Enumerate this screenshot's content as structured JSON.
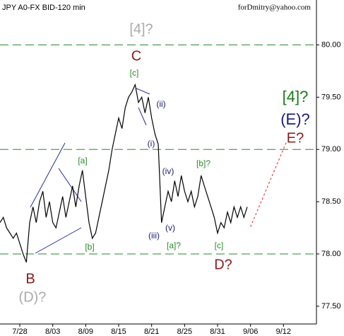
{
  "header": {
    "title": "JPY A0-FX BID-120 min",
    "author": "forDmitry@yahoo.com"
  },
  "chart_data": {
    "type": "line",
    "x": [
      0,
      1,
      2,
      3,
      4,
      5,
      6,
      7,
      8,
      9,
      10,
      11,
      12,
      13,
      14,
      15,
      16,
      17,
      18,
      19,
      20,
      21,
      22,
      23,
      24,
      25,
      26,
      27,
      28,
      29,
      30,
      31,
      32,
      33,
      34,
      35,
      36,
      37,
      38,
      39,
      40,
      41,
      42,
      43,
      44,
      45,
      46,
      47,
      48,
      49,
      50,
      51,
      52,
      53,
      54,
      55,
      56,
      57,
      58,
      59,
      60,
      61,
      62,
      63,
      64,
      65,
      66,
      67,
      68,
      69,
      70,
      71,
      72,
      73,
      74,
      75
    ],
    "values": [
      78.3,
      78.35,
      78.25,
      78.2,
      78.15,
      78.2,
      78.1,
      78.0,
      77.92,
      78.3,
      78.45,
      78.3,
      78.5,
      78.6,
      78.35,
      78.5,
      78.3,
      78.25,
      78.4,
      78.55,
      78.35,
      78.5,
      78.65,
      78.45,
      78.65,
      78.8,
      78.55,
      78.3,
      78.15,
      78.2,
      78.35,
      78.5,
      78.65,
      78.8,
      79.0,
      79.15,
      79.3,
      79.2,
      79.4,
      79.5,
      79.55,
      79.62,
      79.45,
      79.5,
      79.35,
      79.5,
      79.3,
      79.15,
      79.05,
      78.3,
      78.45,
      78.6,
      78.5,
      78.7,
      78.55,
      78.75,
      78.6,
      78.5,
      78.6,
      78.45,
      78.55,
      78.75,
      78.65,
      78.55,
      78.45,
      78.35,
      78.2,
      78.3,
      78.25,
      78.4,
      78.3,
      78.45,
      78.35,
      78.45,
      78.35,
      78.45
    ],
    "color": "#000000",
    "projection": {
      "x": [
        76,
        87
      ],
      "values": [
        78.26,
        79.08
      ],
      "color": "#e02020"
    },
    "xlim": [
      0,
      96
    ],
    "xticks": [
      {
        "value": 6,
        "label": "7/28"
      },
      {
        "value": 16,
        "label": "8/03"
      },
      {
        "value": 26,
        "label": "8/09"
      },
      {
        "value": 36,
        "label": "8/15"
      },
      {
        "value": 46,
        "label": "8/21"
      },
      {
        "value": 56,
        "label": "8/25"
      },
      {
        "value": 66,
        "label": "8/31"
      },
      {
        "value": 76,
        "label": "9/06"
      },
      {
        "value": 86,
        "label": "9/12"
      }
    ],
    "ylim": [
      77.33,
      80.43
    ],
    "yticks": [
      {
        "value": 77.5,
        "label": "77.50"
      },
      {
        "value": 78,
        "label": "78.00"
      },
      {
        "value": 78.5,
        "label": "78.50"
      },
      {
        "value": 79,
        "label": "79.00"
      },
      {
        "value": 79.5,
        "label": "79.50"
      },
      {
        "value": 80,
        "label": "80.00"
      }
    ],
    "hlines": [
      78,
      79,
      80
    ],
    "hline_color": "#2a8a2a",
    "annotations": [
      "[4]?",
      "C",
      "[c]",
      "(ii)",
      "(i)",
      "[a]",
      "(iv)",
      "[b]?",
      "(iii)",
      "(v)",
      "[a]?",
      "[b]",
      "[c]",
      "D?",
      "B",
      "(D)?",
      "[4]?",
      "(E)?",
      "E?"
    ]
  }
}
